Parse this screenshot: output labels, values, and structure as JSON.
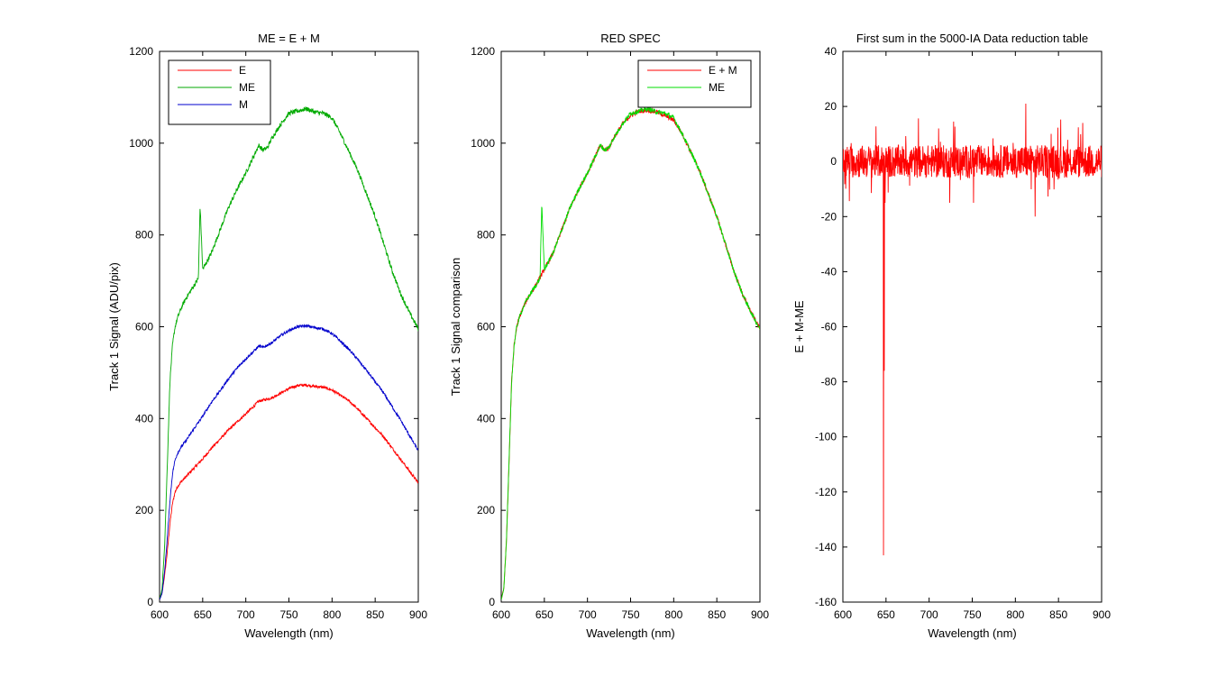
{
  "chart_data": [
    {
      "type": "line",
      "title": "ME = E + M",
      "xlabel": "Wavelength (nm)",
      "ylabel": "Track 1 Signal (ADU/pix)",
      "xlim": [
        600,
        900
      ],
      "ylim": [
        0,
        1200
      ],
      "xticks": [
        "600",
        "650",
        "700",
        "750",
        "800",
        "850",
        "900"
      ],
      "yticks": [
        "0",
        "200",
        "400",
        "600",
        "800",
        "1000",
        "1200"
      ],
      "grid": false,
      "legend": {
        "position": "top-left",
        "entries": [
          "E",
          "ME",
          "M"
        ]
      },
      "series": [
        {
          "name": "E",
          "color": "#ff0000",
          "x": [
            600,
            603,
            606,
            609,
            612,
            615,
            618,
            621,
            625,
            630,
            640,
            650,
            660,
            670,
            680,
            690,
            700,
            710,
            715,
            720,
            730,
            740,
            750,
            760,
            770,
            780,
            790,
            800,
            810,
            820,
            830,
            840,
            850,
            860,
            870,
            880,
            890,
            900
          ],
          "y": [
            5,
            20,
            60,
            110,
            170,
            215,
            240,
            252,
            262,
            272,
            292,
            312,
            335,
            355,
            375,
            393,
            410,
            428,
            438,
            440,
            445,
            455,
            465,
            472,
            473,
            470,
            468,
            462,
            450,
            438,
            420,
            400,
            380,
            360,
            335,
            310,
            285,
            260
          ],
          "noise": 3
        },
        {
          "name": "ME",
          "color": "#00aa00",
          "x": [
            600,
            603,
            606,
            609,
            612,
            615,
            618,
            621,
            625,
            630,
            640,
            645,
            647,
            650,
            660,
            670,
            680,
            690,
            700,
            710,
            715,
            720,
            725,
            730,
            740,
            750,
            760,
            770,
            780,
            790,
            800,
            810,
            820,
            830,
            840,
            850,
            860,
            870,
            880,
            890,
            900
          ],
          "y": [
            5,
            30,
            130,
            300,
            480,
            560,
            600,
            620,
            640,
            660,
            690,
            705,
            865,
            725,
            760,
            810,
            860,
            900,
            935,
            975,
            995,
            985,
            990,
            1010,
            1040,
            1065,
            1070,
            1075,
            1068,
            1065,
            1055,
            1020,
            980,
            940,
            890,
            840,
            780,
            720,
            670,
            630,
            595
          ],
          "noise": 5
        },
        {
          "name": "M",
          "color": "#0000cc",
          "x": [
            600,
            603,
            606,
            609,
            612,
            615,
            618,
            621,
            625,
            630,
            640,
            650,
            660,
            670,
            680,
            690,
            700,
            710,
            715,
            720,
            730,
            740,
            750,
            760,
            770,
            780,
            790,
            800,
            810,
            820,
            830,
            840,
            850,
            860,
            870,
            880,
            890,
            900
          ],
          "y": [
            5,
            20,
            70,
            140,
            220,
            280,
            310,
            325,
            338,
            350,
            378,
            405,
            435,
            460,
            487,
            510,
            530,
            548,
            558,
            555,
            565,
            580,
            592,
            600,
            602,
            598,
            595,
            585,
            568,
            550,
            528,
            505,
            480,
            455,
            425,
            395,
            362,
            330
          ],
          "noise": 3
        }
      ]
    },
    {
      "type": "line",
      "title": "RED SPEC",
      "xlabel": "Wavelength (nm)",
      "ylabel": "Track 1 Signal comparison",
      "xlim": [
        600,
        900
      ],
      "ylim": [
        0,
        1200
      ],
      "xticks": [
        "600",
        "650",
        "700",
        "750",
        "800",
        "850",
        "900"
      ],
      "yticks": [
        "0",
        "200",
        "400",
        "600",
        "800",
        "1000",
        "1200"
      ],
      "grid": false,
      "legend": {
        "position": "top-right",
        "entries": [
          "E + M",
          "ME"
        ]
      },
      "series": [
        {
          "name": "E + M",
          "color": "#ff0000",
          "x": [
            600,
            603,
            606,
            609,
            612,
            615,
            618,
            621,
            625,
            630,
            640,
            650,
            660,
            670,
            680,
            690,
            700,
            710,
            715,
            720,
            725,
            730,
            740,
            750,
            760,
            770,
            780,
            790,
            800,
            810,
            820,
            830,
            840,
            850,
            860,
            870,
            880,
            890,
            900
          ],
          "y": [
            5,
            30,
            130,
            300,
            480,
            560,
            600,
            620,
            640,
            660,
            690,
            725,
            760,
            810,
            860,
            900,
            935,
            975,
            995,
            985,
            990,
            1010,
            1040,
            1060,
            1070,
            1072,
            1068,
            1060,
            1050,
            1020,
            980,
            940,
            890,
            840,
            780,
            720,
            670,
            630,
            595
          ],
          "noise": 5
        },
        {
          "name": "ME",
          "color": "#00dd00",
          "x": [
            600,
            603,
            606,
            609,
            612,
            615,
            618,
            621,
            625,
            630,
            640,
            645,
            647,
            650,
            660,
            670,
            680,
            690,
            700,
            710,
            715,
            720,
            725,
            730,
            740,
            750,
            760,
            770,
            780,
            790,
            800,
            810,
            820,
            830,
            840,
            850,
            860,
            870,
            880,
            890,
            900
          ],
          "y": [
            5,
            30,
            130,
            300,
            480,
            560,
            600,
            620,
            640,
            660,
            690,
            705,
            865,
            725,
            760,
            810,
            860,
            900,
            935,
            975,
            995,
            985,
            990,
            1010,
            1040,
            1065,
            1070,
            1075,
            1068,
            1065,
            1055,
            1020,
            980,
            940,
            890,
            840,
            780,
            720,
            670,
            630,
            595
          ],
          "noise": 5
        }
      ]
    },
    {
      "type": "line",
      "title": "First sum in the 5000-IA Data reduction table",
      "xlabel": "Wavelength (nm)",
      "ylabel": "E + M-ME",
      "xlim": [
        600,
        900
      ],
      "ylim": [
        -160,
        40
      ],
      "xticks": [
        "600",
        "650",
        "700",
        "750",
        "800",
        "850",
        "900"
      ],
      "yticks": [
        "-160",
        "-140",
        "-120",
        "-100",
        "-80",
        "-60",
        "-40",
        "-20",
        "0",
        "20",
        "40"
      ],
      "grid": false,
      "legend": null,
      "series": [
        {
          "name": "",
          "color": "#ff0000",
          "baseline": 0,
          "noise": 6,
          "spikes": [
            {
              "x": 647,
              "y": -143
            },
            {
              "x": 648,
              "y": -76
            },
            {
              "x": 649,
              "y": -15
            },
            {
              "x": 812,
              "y": 21
            },
            {
              "x": 823,
              "y": -20
            },
            {
              "x": 711,
              "y": 12
            },
            {
              "x": 878,
              "y": 14
            },
            {
              "x": 724,
              "y": -15
            }
          ]
        }
      ]
    }
  ]
}
